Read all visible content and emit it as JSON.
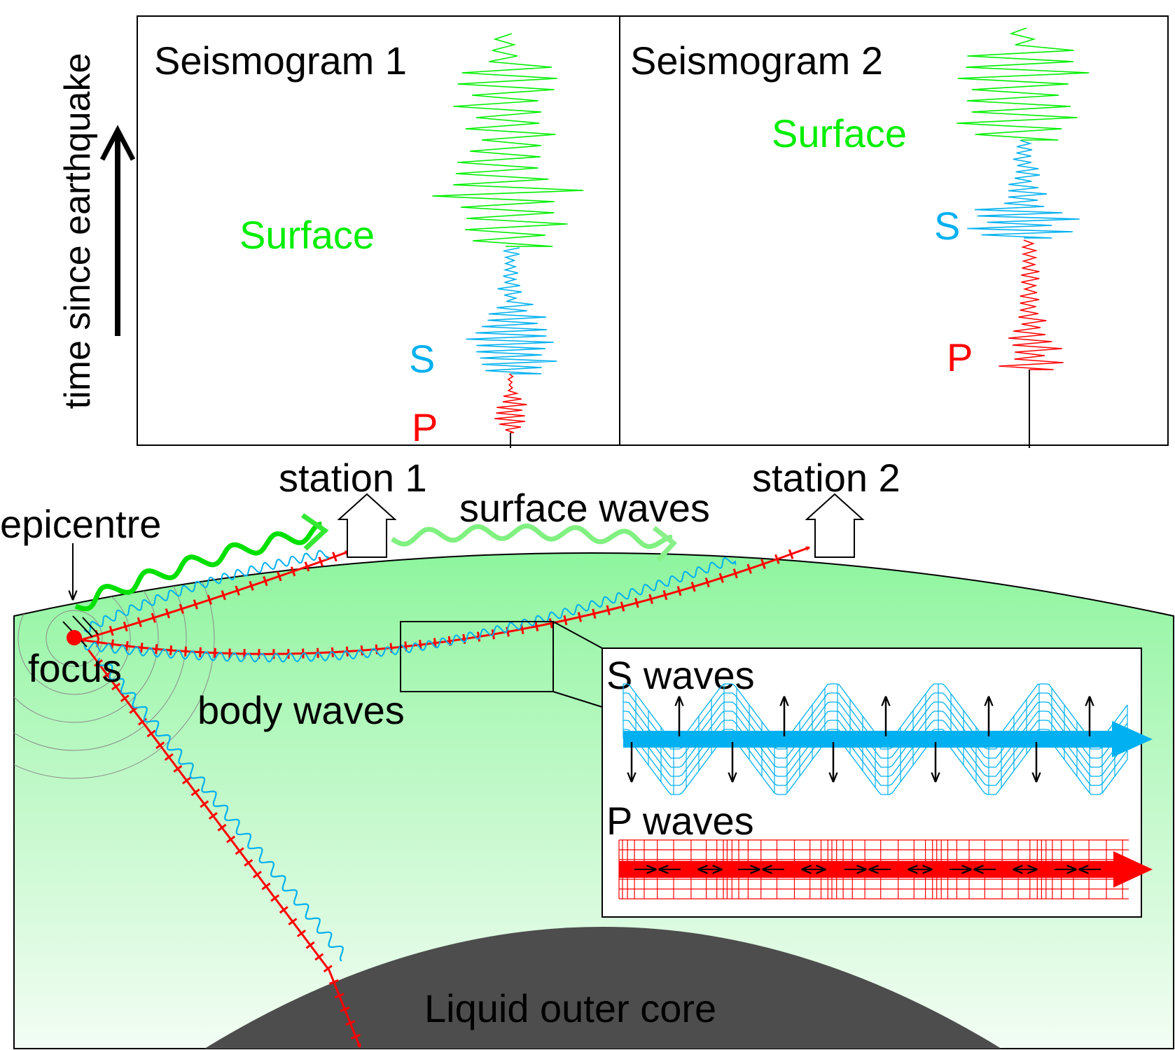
{
  "axis": {
    "ylabel": "time since earthquake"
  },
  "seismogram1": {
    "title": "Seismogram 1",
    "surface_label": "Surface",
    "s_label": "S",
    "p_label": "P"
  },
  "seismogram2": {
    "title": "Seismogram 2",
    "surface_label": "Surface",
    "s_label": "S",
    "p_label": "P"
  },
  "labels": {
    "station1": "station 1",
    "station2": "station 2",
    "surface_waves": "surface waves",
    "epicentre": "epicentre",
    "focus": "focus",
    "body_waves": "body waves",
    "outer_core": "Liquid outer core"
  },
  "inset": {
    "s_title": "S waves",
    "p_title": "P waves"
  },
  "colors": {
    "p_wave": "#ff0000",
    "s_wave": "#00b0f0",
    "surface_wave": "#00ee00",
    "ground_top": "#8ef59e",
    "core": "#4d4d4d"
  }
}
